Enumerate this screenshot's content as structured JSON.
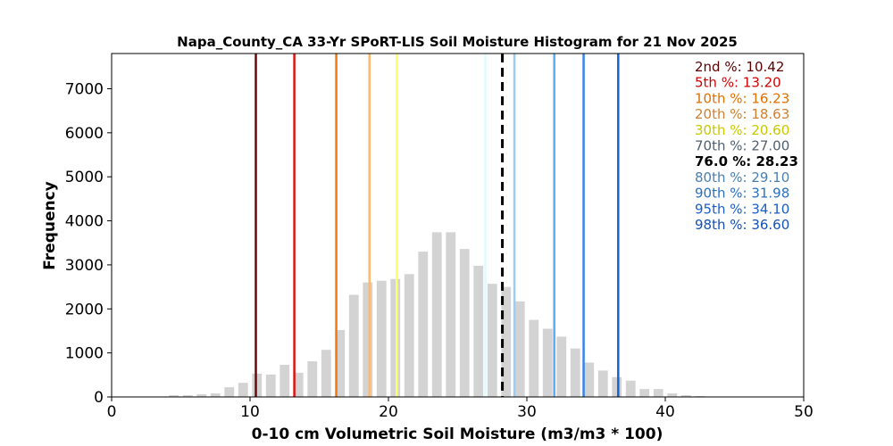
{
  "chart_data": {
    "type": "bar",
    "title": "Napa_County_CA 33-Yr SPoRT-LIS Soil Moisture Histogram for 21 Nov 2025",
    "xlabel": "0-10 cm Volumetric Soil Moisture (m3/m3 * 100)",
    "ylabel": "Frequency",
    "xlim": [
      0,
      50
    ],
    "ylim": [
      0,
      7800
    ],
    "xticks": [
      0,
      10,
      20,
      30,
      40,
      50
    ],
    "yticks": [
      0,
      1000,
      2000,
      3000,
      4000,
      5000,
      6000,
      7000
    ],
    "bar_color": "#d3d3d3",
    "bins": [
      4.5,
      5.5,
      6.5,
      7.5,
      8.5,
      9.5,
      10.5,
      11.5,
      12.5,
      13.5,
      14.5,
      15.5,
      16.5,
      17.5,
      18.5,
      19.5,
      20.5,
      21.5,
      22.5,
      23.5,
      24.5,
      25.5,
      26.5,
      27.5,
      28.5,
      29.5,
      30.5,
      31.5,
      32.5,
      33.5,
      34.5,
      35.5,
      36.5,
      37.5,
      38.5,
      39.5,
      40.5,
      41.5,
      42.5
    ],
    "values": [
      40,
      40,
      60,
      80,
      220,
      320,
      530,
      510,
      730,
      550,
      810,
      1070,
      1520,
      2320,
      2600,
      2640,
      2680,
      2790,
      3300,
      3740,
      3740,
      3360,
      2980,
      2570,
      2500,
      2170,
      1750,
      1550,
      1370,
      1100,
      780,
      600,
      450,
      370,
      180,
      180,
      80,
      40,
      20
    ],
    "percentile_lines": [
      {
        "label": "2nd %: 10.42",
        "value": 10.42,
        "color": "#6b0a0a"
      },
      {
        "label": "5th %: 13.20",
        "value": 13.2,
        "color": "#e01010"
      },
      {
        "label": "10th %: 16.23",
        "value": 16.23,
        "color": "#f07a10"
      },
      {
        "label": "20th %: 18.63",
        "value": 18.63,
        "color": "#ffb870"
      },
      {
        "label": "30th %: 20.60",
        "value": 20.6,
        "color": "#ffff66"
      },
      {
        "label": "70th %: 27.00",
        "value": 27.0,
        "color": "#e0fbff"
      },
      {
        "label": "76.0 %: 28.23",
        "value": 28.23,
        "color": "#000000",
        "dashed": true
      },
      {
        "label": "80th %: 29.10",
        "value": 29.1,
        "color": "#99cdf2"
      },
      {
        "label": "90th %: 31.98",
        "value": 31.98,
        "color": "#5aabf8"
      },
      {
        "label": "95th %: 34.10",
        "value": 34.1,
        "color": "#3585e8"
      },
      {
        "label": "98th %: 36.60",
        "value": 36.6,
        "color": "#1a62d0"
      }
    ],
    "legend_text_colors": [
      "#5a0000",
      "#d00000",
      "#e07000",
      "#d08030",
      "#c8c800",
      "#506070",
      "#000000",
      "#4a80b0",
      "#2a70c0",
      "#1a5ec8",
      "#1450b8"
    ],
    "legend_position": "top-right",
    "grid": false
  }
}
